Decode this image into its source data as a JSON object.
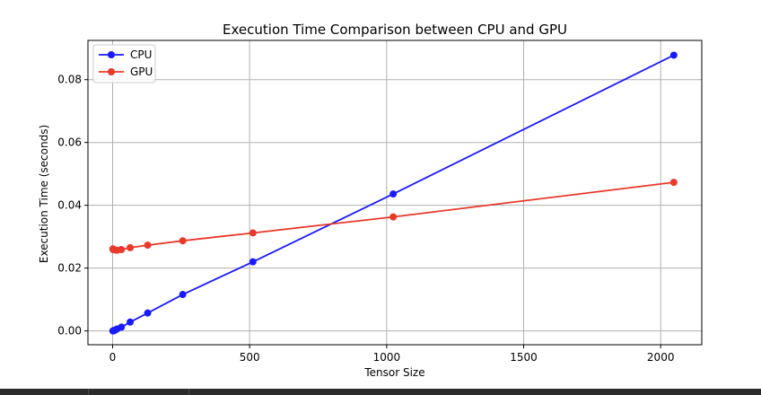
{
  "chart_data": {
    "type": "line",
    "title": "Execution Time Comparison between CPU and GPU",
    "xlabel": "Tensor Size",
    "ylabel": "Execution Time (seconds)",
    "xlim": [
      -90,
      2150
    ],
    "ylim": [
      -0.0044,
      0.0925
    ],
    "xticks": [
      0,
      500,
      1000,
      1500,
      2000
    ],
    "xtick_labels": [
      "0",
      "500",
      "1000",
      "1500",
      "2000"
    ],
    "yticks": [
      0.0,
      0.02,
      0.04,
      0.06,
      0.08
    ],
    "ytick_labels": [
      "0.00",
      "0.02",
      "0.04",
      "0.06",
      "0.08"
    ],
    "grid": true,
    "legend_position": "top-left",
    "series": [
      {
        "name": "CPU",
        "color": "#1a1aff",
        "marker": "circle",
        "x": [
          1,
          2,
          4,
          8,
          16,
          32,
          64,
          128,
          256,
          512,
          1024,
          2048
        ],
        "y": [
          0.0,
          0.0,
          0.0001,
          0.0002,
          0.0006,
          0.0012,
          0.0028,
          0.0057,
          0.0116,
          0.022,
          0.0436,
          0.0878
        ]
      },
      {
        "name": "GPU",
        "color": "#e8392a",
        "marker": "circle",
        "x": [
          1,
          2,
          4,
          8,
          16,
          32,
          64,
          128,
          256,
          512,
          1024,
          2048
        ],
        "y": [
          0.0261,
          0.0259,
          0.0259,
          0.0258,
          0.0257,
          0.0259,
          0.0265,
          0.0273,
          0.0287,
          0.0312,
          0.0363,
          0.0473
        ]
      }
    ]
  }
}
